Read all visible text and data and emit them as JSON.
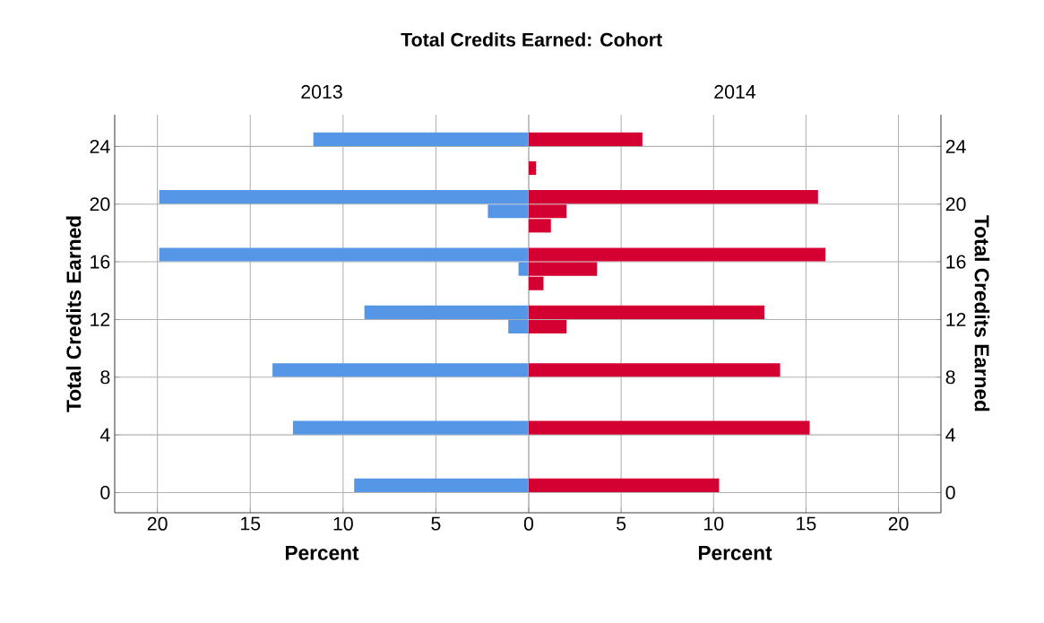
{
  "chart_data": [
    {
      "type": "histogram",
      "title": "Total Credits Earned: Cohort",
      "subtitle": "2013",
      "xlabel": "Percent",
      "ylabel": "Total Credits Earned",
      "orientation": "horizontal",
      "color": "#5596e6",
      "bins": [
        0,
        1,
        2,
        3,
        4,
        5,
        6,
        7,
        8,
        9,
        10,
        11,
        12,
        13,
        14,
        15,
        16,
        17,
        18,
        19,
        20,
        21,
        22,
        23,
        24,
        25
      ],
      "values": [
        9.4,
        0,
        0,
        0,
        12.7,
        0,
        0,
        0,
        13.8,
        0,
        0,
        1.1,
        8.85,
        0,
        0,
        0.55,
        19.9,
        0,
        0,
        2.2,
        19.9,
        0,
        0,
        0,
        11.6
      ],
      "xlim": [
        22.3,
        0
      ],
      "xticks": [
        {
          "value": 0,
          "label": null
        },
        5,
        10,
        15,
        20
      ],
      "ylim": [
        -1.4,
        26.2
      ],
      "yticks": [
        0,
        4,
        8,
        12,
        16,
        20,
        24
      ],
      "grid": true
    },
    {
      "type": "histogram",
      "subtitle": "2014",
      "xlabel": "Percent",
      "ylabel": "Total Credits Earned",
      "orientation": "horizontal",
      "color": "#d50032",
      "bins": [
        0,
        1,
        2,
        3,
        4,
        5,
        6,
        7,
        8,
        9,
        10,
        11,
        12,
        13,
        14,
        15,
        16,
        17,
        18,
        19,
        20,
        21,
        22,
        23,
        24,
        25
      ],
      "values": [
        10.3,
        0,
        0,
        0,
        15.2,
        0,
        0,
        0,
        13.6,
        0,
        0,
        2.05,
        12.75,
        0,
        0.8,
        3.7,
        16.05,
        0,
        1.2,
        2.05,
        15.65,
        0,
        0.4,
        0,
        6.15
      ],
      "xlim": [
        0,
        22.3
      ],
      "xticks": [
        0,
        5,
        10,
        15,
        20
      ],
      "ylim": [
        -1.4,
        26.2
      ],
      "yticks": [
        0,
        4,
        8,
        12,
        16,
        20,
        24
      ],
      "grid": true
    }
  ]
}
